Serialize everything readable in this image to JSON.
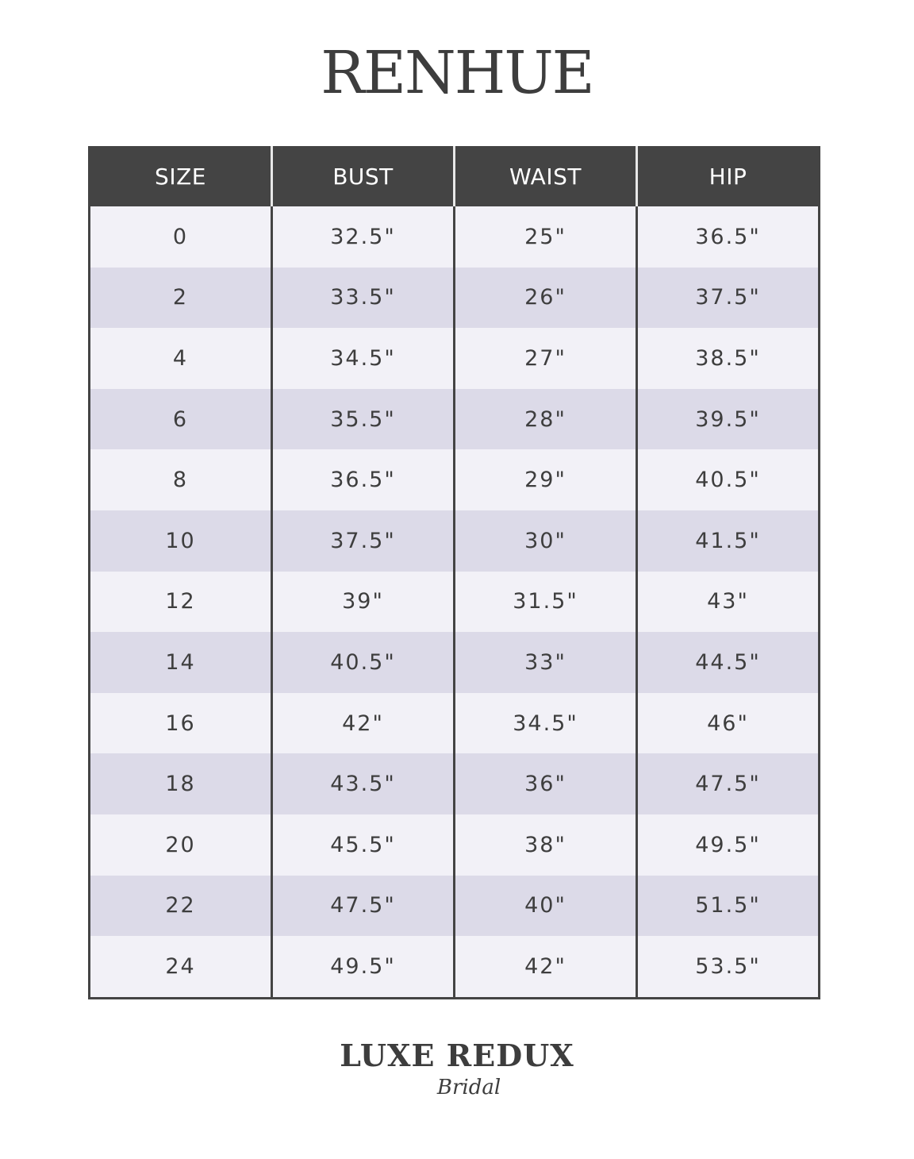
{
  "title": "RENHUE",
  "table": {
    "headers": [
      "SIZE",
      "BUST",
      "WAIST",
      "HIP"
    ],
    "rows": [
      [
        "0",
        "32.5\"",
        "25\"",
        "36.5\""
      ],
      [
        "2",
        "33.5\"",
        "26\"",
        "37.5\""
      ],
      [
        "4",
        "34.5\"",
        "27\"",
        "38.5\""
      ],
      [
        "6",
        "35.5\"",
        "28\"",
        "39.5\""
      ],
      [
        "8",
        "36.5\"",
        "29\"",
        "40.5\""
      ],
      [
        "10",
        "37.5\"",
        "30\"",
        "41.5\""
      ],
      [
        "12",
        "39\"",
        "31.5\"",
        "43\""
      ],
      [
        "14",
        "40.5\"",
        "33\"",
        "44.5\""
      ],
      [
        "16",
        "42\"",
        "34.5\"",
        "46\""
      ],
      [
        "18",
        "43.5\"",
        "36\"",
        "47.5\""
      ],
      [
        "20",
        "45.5\"",
        "38\"",
        "49.5\""
      ],
      [
        "22",
        "47.5\"",
        "40\"",
        "51.5\""
      ],
      [
        "24",
        "49.5\"",
        "42\"",
        "53.5\""
      ]
    ]
  },
  "logo": {
    "main": "LUXE REDUX",
    "sub": "Bridal"
  },
  "colors": {
    "header_bg": "#444444",
    "row_light": "#f2f1f7",
    "row_alt": "#dcdae8",
    "text": "#3e3e3e"
  }
}
